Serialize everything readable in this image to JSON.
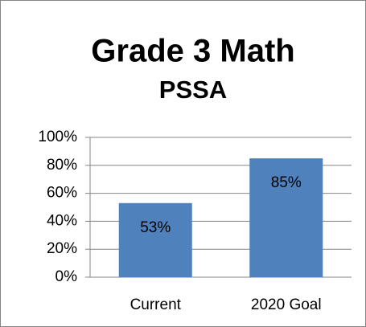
{
  "chart_data": {
    "type": "bar",
    "title": "Grade 3 Math",
    "subtitle": "PSSA",
    "categories": [
      "Current",
      "2020 Goal"
    ],
    "values": [
      53,
      85
    ],
    "value_labels": [
      "53%",
      "85%"
    ],
    "color": "#4f81bd",
    "ylim": [
      0,
      100
    ],
    "yticks": [
      {
        "value": 0,
        "label": "0%"
      },
      {
        "value": 20,
        "label": "20%"
      },
      {
        "value": 40,
        "label": "40%"
      },
      {
        "value": 60,
        "label": "60%"
      },
      {
        "value": 80,
        "label": "80%"
      },
      {
        "value": 100,
        "label": "100%"
      }
    ],
    "grid": true
  }
}
